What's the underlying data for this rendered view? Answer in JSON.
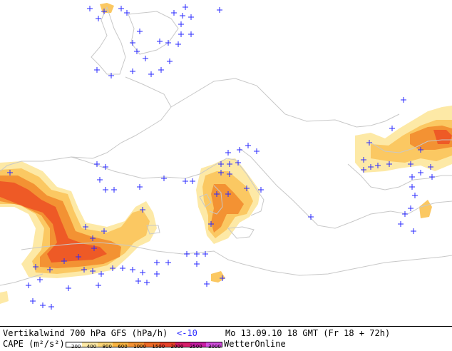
{
  "footer": {
    "line1_left": "Vertikalwind 700 hPa GFS (hPa/h)",
    "line1_threshold": "<-10",
    "line1_time": "Mo 13.09.10 18 GMT (Fr 18 + 72h)",
    "line2_left": "CAPE (m²/s²)",
    "brand": "WetterOnline"
  },
  "legend": {
    "ticks": [
      "200",
      "400",
      "800",
      "600",
      "1000",
      "1500",
      "2000",
      "2500",
      "3000"
    ],
    "colors": [
      "#ffffff",
      "#fde9a6",
      "#fbd576",
      "#f7b341",
      "#f39233",
      "#ee6a26",
      "#e8412a",
      "#d81e6a",
      "#c81ea4",
      "#d450e0"
    ]
  },
  "map": {
    "colors": {
      "coast": "#c8c8c8",
      "plus": "#2a2aff",
      "cape_low": "#fde9a6",
      "cape_mid": "#fbc862",
      "cape_high": "#f39233",
      "cape_max": "#ee5a26"
    }
  }
}
